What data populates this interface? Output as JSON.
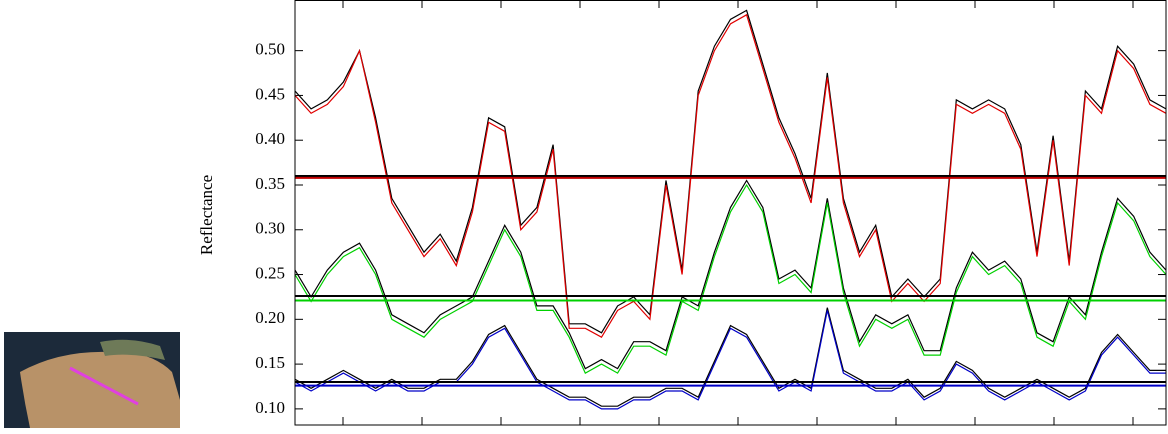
{
  "chart_data": {
    "type": "line",
    "y_label": "Reflectance",
    "ylim": [
      0.082,
      0.556
    ],
    "yticks": [
      {
        "value": 0.1,
        "label": "0.10"
      },
      {
        "value": 0.15,
        "label": "0.15"
      },
      {
        "value": 0.2,
        "label": "0.20"
      },
      {
        "value": 0.25,
        "label": "0.25"
      },
      {
        "value": 0.3,
        "label": "0.30"
      },
      {
        "value": 0.35,
        "label": "0.35"
      },
      {
        "value": 0.4,
        "label": "0.40"
      },
      {
        "value": 0.45,
        "label": "0.45"
      },
      {
        "value": 0.5,
        "label": "0.50"
      }
    ],
    "series": [
      {
        "color": "#000000",
        "values": [
          0.455,
          0.435,
          0.445,
          0.465,
          0.5,
          0.425,
          0.335,
          0.305,
          0.275,
          0.295,
          0.265,
          0.325,
          0.425,
          0.415,
          0.305,
          0.325,
          0.395,
          0.195,
          0.195,
          0.185,
          0.215,
          0.225,
          0.205,
          0.355,
          0.255,
          0.455,
          0.505,
          0.535,
          0.545,
          0.485,
          0.425,
          0.385,
          0.335,
          0.475,
          0.335,
          0.275,
          0.305,
          0.225,
          0.245,
          0.225,
          0.245,
          0.445,
          0.435,
          0.445,
          0.435,
          0.395,
          0.275,
          0.405,
          0.265,
          0.455,
          0.435,
          0.505,
          0.485,
          0.445,
          0.435
        ]
      },
      {
        "color": "#e00000",
        "values": [
          0.45,
          0.43,
          0.44,
          0.46,
          0.5,
          0.42,
          0.33,
          0.3,
          0.27,
          0.29,
          0.26,
          0.32,
          0.42,
          0.41,
          0.3,
          0.32,
          0.39,
          0.19,
          0.19,
          0.18,
          0.21,
          0.22,
          0.2,
          0.35,
          0.25,
          0.45,
          0.5,
          0.53,
          0.54,
          0.48,
          0.42,
          0.38,
          0.33,
          0.47,
          0.33,
          0.27,
          0.3,
          0.22,
          0.24,
          0.22,
          0.24,
          0.44,
          0.43,
          0.44,
          0.43,
          0.39,
          0.27,
          0.4,
          0.26,
          0.45,
          0.43,
          0.5,
          0.48,
          0.44,
          0.43
        ]
      },
      {
        "color": "#000000",
        "values": [
          0.255,
          0.225,
          0.255,
          0.275,
          0.285,
          0.255,
          0.205,
          0.195,
          0.185,
          0.205,
          0.215,
          0.225,
          0.265,
          0.305,
          0.275,
          0.215,
          0.215,
          0.185,
          0.145,
          0.155,
          0.145,
          0.175,
          0.175,
          0.165,
          0.225,
          0.215,
          0.275,
          0.325,
          0.355,
          0.325,
          0.245,
          0.255,
          0.235,
          0.335,
          0.235,
          0.175,
          0.205,
          0.195,
          0.205,
          0.165,
          0.165,
          0.235,
          0.275,
          0.255,
          0.265,
          0.245,
          0.185,
          0.175,
          0.225,
          0.205,
          0.275,
          0.335,
          0.315,
          0.275,
          0.255
        ]
      },
      {
        "color": "#00d000",
        "values": [
          0.25,
          0.22,
          0.25,
          0.27,
          0.28,
          0.25,
          0.2,
          0.19,
          0.18,
          0.2,
          0.21,
          0.22,
          0.26,
          0.3,
          0.27,
          0.21,
          0.21,
          0.18,
          0.14,
          0.15,
          0.14,
          0.17,
          0.17,
          0.16,
          0.22,
          0.21,
          0.27,
          0.32,
          0.35,
          0.32,
          0.24,
          0.25,
          0.23,
          0.33,
          0.23,
          0.17,
          0.2,
          0.19,
          0.2,
          0.16,
          0.16,
          0.23,
          0.27,
          0.25,
          0.26,
          0.24,
          0.18,
          0.17,
          0.22,
          0.2,
          0.27,
          0.33,
          0.31,
          0.27,
          0.25
        ]
      },
      {
        "color": "#000000",
        "values": [
          0.133,
          0.123,
          0.133,
          0.143,
          0.133,
          0.123,
          0.133,
          0.123,
          0.123,
          0.133,
          0.133,
          0.153,
          0.183,
          0.193,
          0.163,
          0.133,
          0.123,
          0.113,
          0.113,
          0.103,
          0.103,
          0.113,
          0.113,
          0.123,
          0.123,
          0.113,
          0.153,
          0.193,
          0.183,
          0.153,
          0.123,
          0.133,
          0.123,
          0.213,
          0.143,
          0.133,
          0.123,
          0.123,
          0.133,
          0.113,
          0.123,
          0.153,
          0.143,
          0.123,
          0.113,
          0.123,
          0.133,
          0.123,
          0.113,
          0.123,
          0.163,
          0.183,
          0.163,
          0.143,
          0.143
        ]
      },
      {
        "color": "#0000c8",
        "values": [
          0.13,
          0.12,
          0.13,
          0.14,
          0.13,
          0.12,
          0.13,
          0.12,
          0.12,
          0.13,
          0.13,
          0.15,
          0.18,
          0.19,
          0.16,
          0.13,
          0.12,
          0.11,
          0.11,
          0.1,
          0.1,
          0.11,
          0.11,
          0.12,
          0.12,
          0.11,
          0.15,
          0.19,
          0.18,
          0.15,
          0.12,
          0.13,
          0.12,
          0.21,
          0.14,
          0.13,
          0.12,
          0.12,
          0.13,
          0.11,
          0.12,
          0.15,
          0.14,
          0.12,
          0.11,
          0.12,
          0.13,
          0.12,
          0.11,
          0.12,
          0.16,
          0.18,
          0.16,
          0.14,
          0.14
        ]
      }
    ],
    "hlines": [
      {
        "color": "#000000",
        "value": 0.36
      },
      {
        "color": "#c00000",
        "value": 0.358
      },
      {
        "color": "#000000",
        "value": 0.226
      },
      {
        "color": "#00d000",
        "value": 0.221
      },
      {
        "color": "#000000",
        "value": 0.13
      },
      {
        "color": "#0000c8",
        "value": 0.126
      }
    ]
  }
}
